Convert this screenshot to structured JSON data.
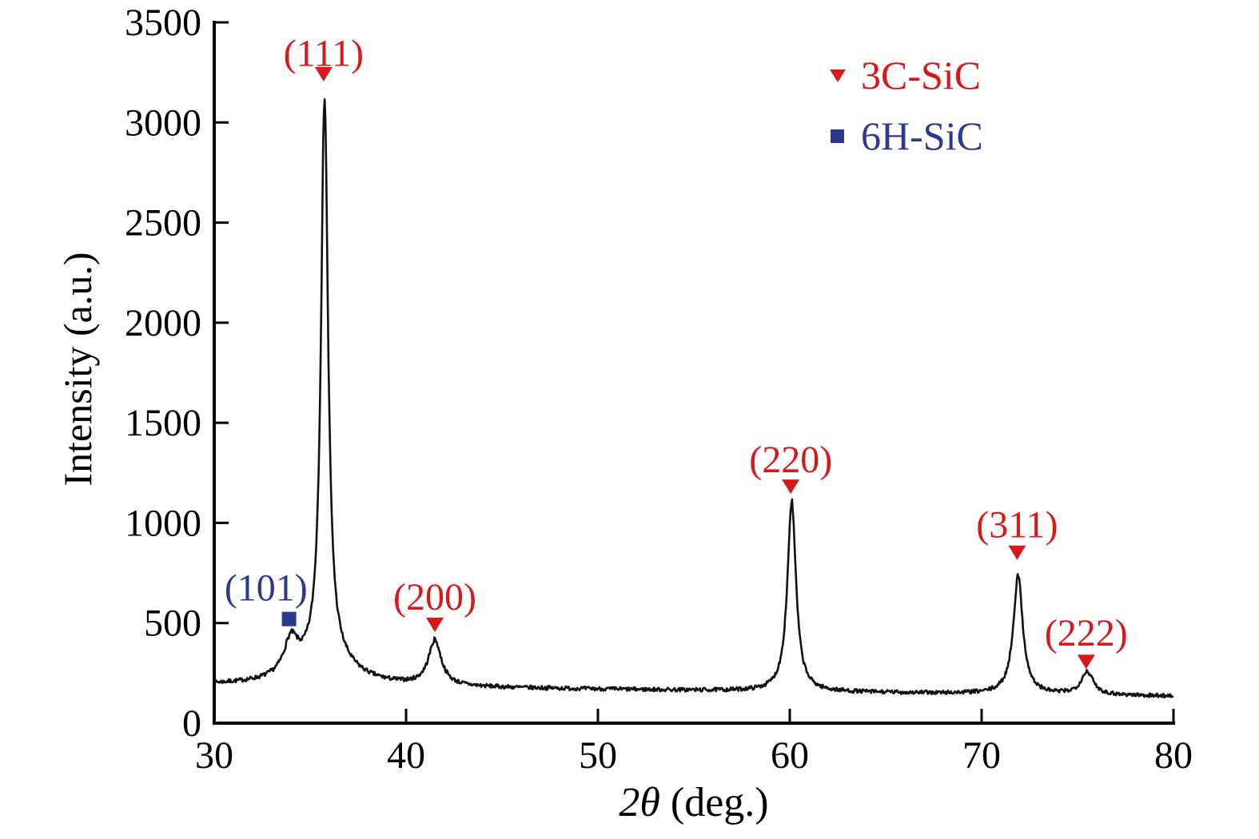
{
  "figure": {
    "xlabel_math": "2θ",
    "xlabel_unit": " (deg.)",
    "ylabel": "Intensity (a.u.)"
  },
  "legend": {
    "items": [
      {
        "label": "3C-SiC",
        "marker": "triangle-down-icon",
        "color": "#d7191c"
      },
      {
        "label": "6H-SiC",
        "marker": "square-icon",
        "color": "#2b3990"
      }
    ]
  },
  "chart_data": {
    "type": "line",
    "title": "",
    "xlabel": "2θ (deg.)",
    "ylabel": "Intensity (a.u.)",
    "xlim": [
      30,
      80
    ],
    "ylim": [
      0,
      3500
    ],
    "xticks": [
      30,
      40,
      50,
      60,
      70,
      80
    ],
    "yticks": [
      0,
      500,
      1000,
      1500,
      2000,
      2500,
      3000,
      3500
    ],
    "grid": false,
    "legend_position": "top-right",
    "line_color": "#111111",
    "baseline_intensity": [
      190,
      135
    ],
    "noise_amplitude": 10,
    "peaks": [
      {
        "label": "(101)",
        "phase": "6H-SiC",
        "two_theta": 34.0,
        "peak_intensity": 450
      },
      {
        "label": "(111)",
        "phase": "3C-SiC",
        "two_theta": 35.75,
        "peak_intensity": 3140
      },
      {
        "label": "(200)",
        "phase": "3C-SiC",
        "two_theta": 41.5,
        "peak_intensity": 400
      },
      {
        "label": "(220)",
        "phase": "3C-SiC",
        "two_theta": 60.1,
        "peak_intensity": 1110
      },
      {
        "label": "(311)",
        "phase": "3C-SiC",
        "two_theta": 71.9,
        "peak_intensity": 735
      },
      {
        "label": "(222)",
        "phase": "3C-SiC",
        "two_theta": 75.5,
        "peak_intensity": 255
      }
    ],
    "profile": [
      {
        "center": 34.0,
        "amplitude": 170,
        "width": 0.45
      },
      {
        "center": 35.75,
        "amplitude": 2820,
        "width": 0.22
      },
      {
        "center": 35.9,
        "amplitude": 130,
        "width": 1.6
      },
      {
        "center": 41.5,
        "amplitude": 225,
        "width": 0.4
      },
      {
        "center": 60.1,
        "amplitude": 950,
        "width": 0.27
      },
      {
        "center": 71.9,
        "amplitude": 590,
        "width": 0.3
      },
      {
        "center": 75.5,
        "amplitude": 115,
        "width": 0.38
      }
    ],
    "annotations": [
      {
        "text": "(111)",
        "color": "#d7191c",
        "marker": "triangle-down",
        "marker_x": 35.7,
        "marker_y": 3245,
        "text_x": 35.7,
        "text_y": 3350
      },
      {
        "text": "(101)",
        "color": "#2b3990",
        "marker": "square",
        "marker_x": 33.9,
        "marker_y": 520,
        "text_x": 32.7,
        "text_y": 680
      },
      {
        "text": "(200)",
        "color": "#d7191c",
        "marker": "triangle-down",
        "marker_x": 41.5,
        "marker_y": 495,
        "text_x": 41.5,
        "text_y": 635
      },
      {
        "text": "(220)",
        "color": "#d7191c",
        "marker": "triangle-down",
        "marker_x": 60.05,
        "marker_y": 1185,
        "text_x": 60.05,
        "text_y": 1320
      },
      {
        "text": "(311)",
        "color": "#d7191c",
        "marker": "triangle-down",
        "marker_x": 71.85,
        "marker_y": 855,
        "text_x": 71.85,
        "text_y": 995
      },
      {
        "text": "(222)",
        "color": "#d7191c",
        "marker": "triangle-down",
        "marker_x": 75.45,
        "marker_y": 310,
        "text_x": 75.45,
        "text_y": 455
      }
    ]
  }
}
